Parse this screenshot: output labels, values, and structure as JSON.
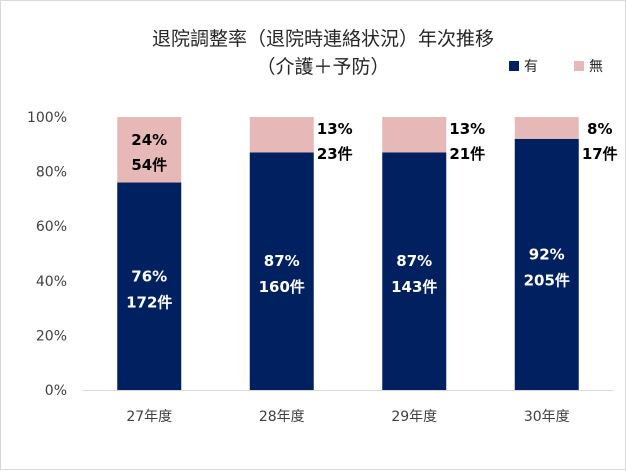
{
  "chart_data": {
    "type": "bar",
    "stacked": true,
    "percent_stacked": true,
    "title": "退院調整率（退院時連絡状況）年次推移",
    "subtitle": "（介護＋予防）",
    "categories": [
      "27年度",
      "28年度",
      "29年度",
      "30年度"
    ],
    "series": [
      {
        "name": "有",
        "color": "#002060",
        "values": [
          76,
          87,
          87,
          92
        ],
        "counts": [
          172,
          160,
          143,
          205
        ],
        "pct_labels": [
          "76%",
          "87%",
          "87%",
          "92%"
        ],
        "count_labels": [
          "172件",
          "160件",
          "143件",
          "205件"
        ]
      },
      {
        "name": "無",
        "color": "#E6B9B8",
        "values": [
          24,
          13,
          13,
          8
        ],
        "counts": [
          54,
          23,
          21,
          17
        ],
        "pct_labels": [
          "24%",
          "13%",
          "13%",
          "8%"
        ],
        "count_labels": [
          "54件",
          "23件",
          "21件",
          "17件"
        ]
      }
    ],
    "ylim": [
      0,
      100
    ],
    "yticks": [
      "0%",
      "20%",
      "40%",
      "60%",
      "80%",
      "100%"
    ],
    "grid": false,
    "legend": "top-right"
  }
}
